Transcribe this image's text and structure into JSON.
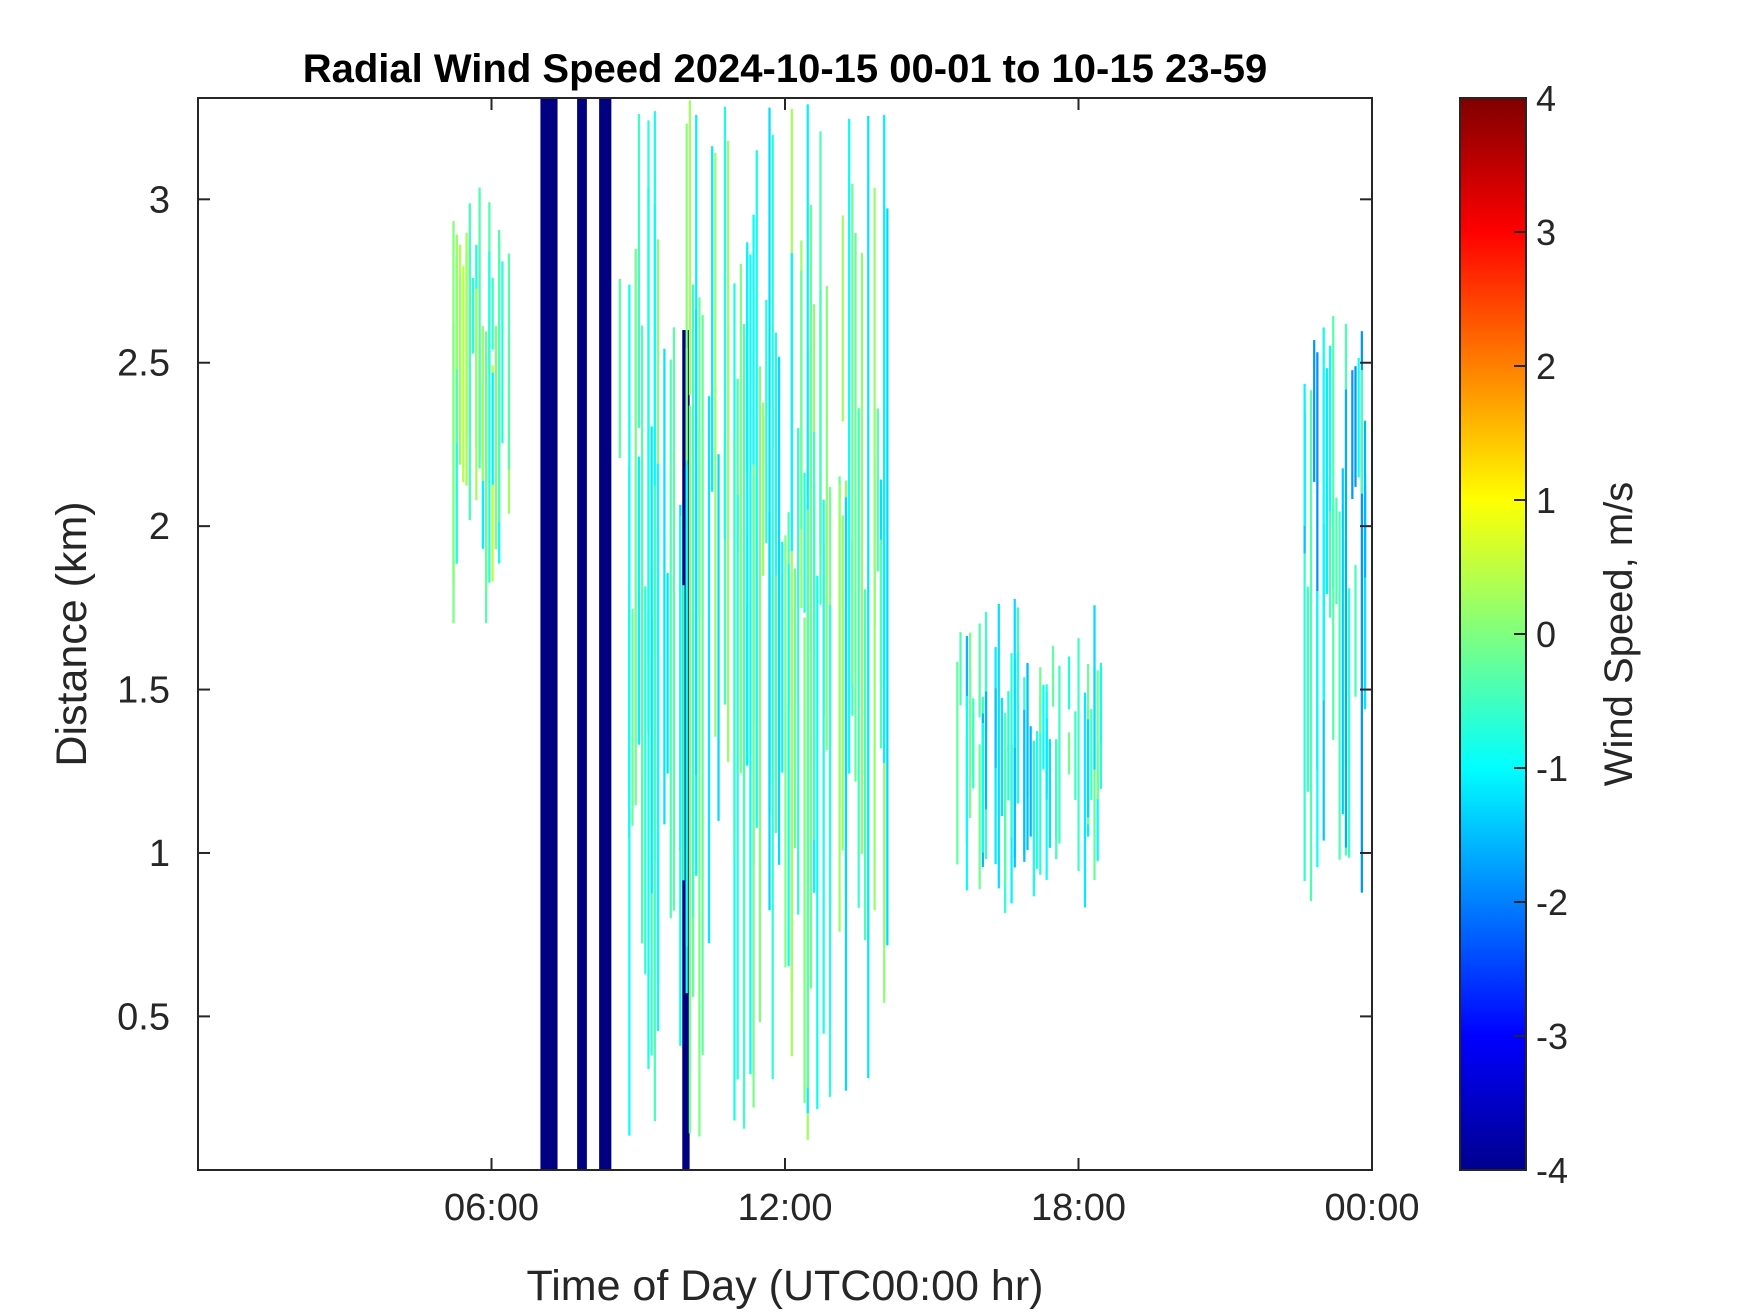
{
  "chart_data": {
    "type": "heatmap",
    "title": "Radial Wind Speed 2024-10-15 00-01 to 10-15 23-59",
    "xlabel": "Time of Day (UTC00:00 hr)",
    "ylabel": "Distance (km)",
    "xlim_hours": [
      0,
      24
    ],
    "ylim_km": [
      0.03,
      3.31
    ],
    "x_ticks": [
      {
        "value": 6,
        "label": "06:00"
      },
      {
        "value": 12,
        "label": "12:00"
      },
      {
        "value": 18,
        "label": "18:00"
      },
      {
        "value": 24,
        "label": "00:00"
      }
    ],
    "y_ticks": [
      {
        "value": 0.5,
        "label": "0.5"
      },
      {
        "value": 1,
        "label": "1"
      },
      {
        "value": 1.5,
        "label": "1.5"
      },
      {
        "value": 2,
        "label": "2"
      },
      {
        "value": 2.5,
        "label": "2.5"
      },
      {
        "value": 3,
        "label": "3"
      }
    ],
    "colorbar": {
      "label": "Wind Speed, m/s",
      "range": [
        -4,
        4
      ],
      "colormap": "jet",
      "ticks": [
        "4",
        "3",
        "2",
        "1",
        "0",
        "-1",
        "-2",
        "-3",
        "-4"
      ]
    },
    "grid": false,
    "regions": [
      {
        "name": "saturated band A",
        "hours": [
          7.0,
          7.35
        ],
        "km": [
          0.03,
          3.31
        ],
        "speed": -4
      },
      {
        "name": "saturated band B",
        "hours": [
          7.75,
          7.95
        ],
        "km": [
          0.03,
          3.31
        ],
        "speed": -4
      },
      {
        "name": "saturated band C",
        "hours": [
          8.2,
          8.45
        ],
        "km": [
          0.03,
          3.31
        ],
        "speed": -4
      },
      {
        "name": "dark streak",
        "hours": [
          9.9,
          10.05
        ],
        "km": [
          0.03,
          2.6
        ],
        "speed": -4
      },
      {
        "name": "morning plume",
        "hours": [
          5.2,
          6.4
        ],
        "km": [
          1.7,
          3.05
        ],
        "speed": -0.3
      },
      {
        "name": "midday echo",
        "hours": [
          8.6,
          14.2
        ],
        "km": [
          0.1,
          3.31
        ],
        "speed": -0.5
      },
      {
        "name": "afternoon rising layer",
        "hours": [
          15.5,
          18.5
        ],
        "km": [
          0.8,
          1.8
        ],
        "speed": -0.8
      },
      {
        "name": "late plume",
        "hours": [
          22.6,
          23.9
        ],
        "km": [
          0.8,
          2.65
        ],
        "speed": -1.1
      }
    ]
  }
}
